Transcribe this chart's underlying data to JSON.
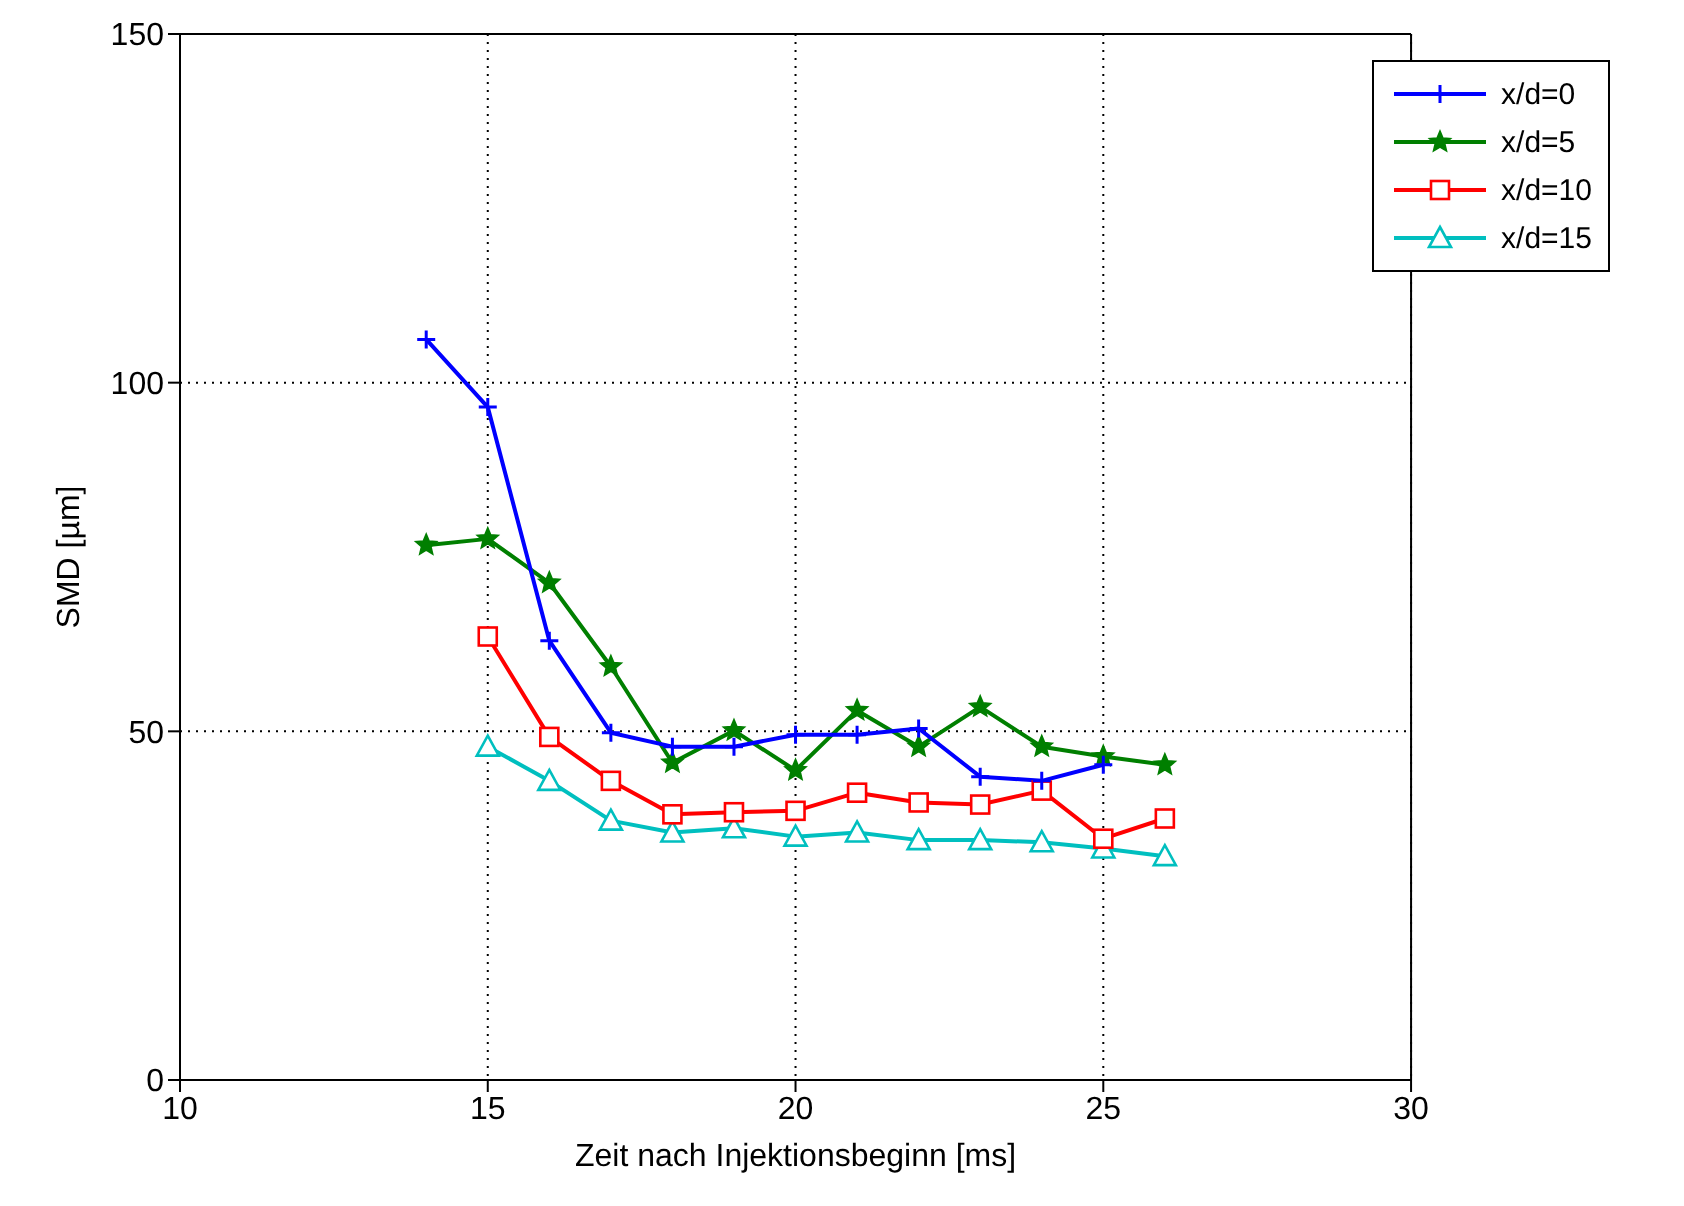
{
  "chart_data": {
    "type": "line",
    "xlabel": "Zeit nach Injektionsbeginn [ms]",
    "ylabel": "SMD [µm]",
    "xlim": [
      10,
      30
    ],
    "xticks": [
      10,
      15,
      20,
      25,
      30
    ],
    "ylim": [
      0,
      150
    ],
    "yticks": [
      0,
      50,
      100,
      150
    ],
    "grid": true,
    "legend": "top right",
    "line_style": "solid",
    "x": [
      14,
      15,
      16,
      17,
      18,
      19,
      20,
      21,
      22,
      23,
      24,
      25,
      26
    ],
    "series": [
      {
        "name": "x/d=0",
        "color": "#0000ff",
        "marker": "cross",
        "values": [
          106.2,
          96.5,
          63,
          49.8,
          47.8,
          47.8,
          49.5,
          49.5,
          50.4,
          43.5,
          42.9,
          45.2,
          null
        ]
      },
      {
        "name": "x/d=5",
        "color": "#007f00",
        "marker": "star",
        "values": [
          76.7,
          77.6,
          71.3,
          59.3,
          45.5,
          50.1,
          44.4,
          53,
          47.8,
          53.5,
          47.8,
          46.4,
          45.2
        ]
      },
      {
        "name": "x/d=10",
        "color": "#ff0000",
        "marker": "square",
        "values": [
          null,
          63.6,
          49.2,
          42.9,
          38.1,
          38.4,
          38.6,
          41.2,
          39.8,
          39.5,
          41.5,
          34.6,
          37.5
        ]
      },
      {
        "name": "x/d=15",
        "color": "#00bfbf",
        "marker": "triangle",
        "values": [
          null,
          47.8,
          42.9,
          37.2,
          35.5,
          36.1,
          34.9,
          35.5,
          34.4,
          34.4,
          34.1,
          33.2,
          32.1
        ]
      }
    ]
  }
}
